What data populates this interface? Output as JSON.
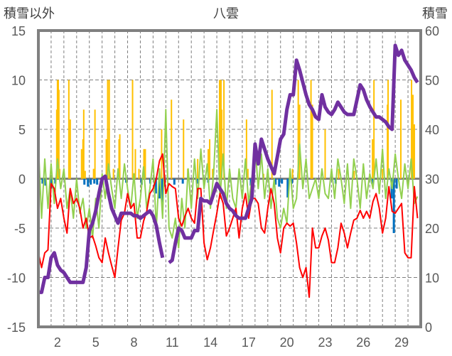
{
  "chart_data": {
    "type": "line",
    "title": "八雲",
    "left_axis_label": "積雪以外",
    "right_axis_label": "積雪",
    "left_ylim": [
      -15,
      15
    ],
    "left_ticks": [
      "15",
      "10",
      "5",
      "0",
      "-5",
      "-10",
      "-15"
    ],
    "right_ylim": [
      0,
      60
    ],
    "right_ticks": [
      "60",
      "50",
      "40",
      "30",
      "20",
      "10",
      "0"
    ],
    "xlim": [
      0.5,
      30.5
    ],
    "x_ticks": [
      "2",
      "5",
      "8",
      "11",
      "14",
      "17",
      "20",
      "23",
      "26",
      "29"
    ],
    "grid": "horizontal dashed every 5, vertical dashed each day",
    "sample_start_day": 0.5,
    "sample_step_days": 0.25,
    "colors": {
      "temperature": "#ff0000",
      "green_series": "#92d050",
      "snow_depth": "#7030a0",
      "sunshine": "#ffc000",
      "precipitation": "#0070c0",
      "axis": "#808080"
    },
    "series": [
      {
        "name": "red",
        "axis": "left",
        "values": [
          -7.5,
          -9,
          -7.5,
          -7.2,
          -0.5,
          -1,
          -3,
          -2,
          -4,
          -5.5,
          -1,
          -2.5,
          -2,
          -3,
          -5,
          -4,
          -6,
          -5.8,
          -6.8,
          -8,
          -8.5,
          -6,
          -7.5,
          -8.8,
          -10,
          -7,
          -4.2,
          -3.5,
          -1.5,
          -3,
          -2.5,
          -6,
          -6,
          -4.3,
          -3.3,
          -1.5,
          -1,
          0,
          1.8,
          2.5,
          -1.5,
          -0.5,
          -0.8,
          -1,
          -4,
          -4.8,
          -3.8,
          -3,
          -4,
          -4.5,
          -1,
          -1,
          -6.5,
          -8.2,
          -7,
          -5.2,
          -3.5,
          -1.5,
          -2.5,
          -5.8,
          -5,
          -4,
          -3,
          -6,
          -3,
          -1.5,
          -4,
          -2,
          -2,
          -2.5,
          -5,
          -5.5,
          -3,
          -1,
          -2.5,
          -6,
          -7.5,
          -5,
          -4.5,
          -4.8,
          -4.5,
          -6.5,
          -9,
          -10,
          -9,
          -12,
          -5,
          -7,
          -7,
          -5.8,
          -5,
          -6.2,
          -8.5,
          -8.5,
          -7,
          -4.5,
          -5.5,
          -7,
          -5.5,
          -4.2,
          -4,
          -3.2,
          -4,
          -3.3,
          -4,
          -2.3,
          -1.5,
          -3,
          -5.5,
          -4,
          -0.8,
          -3.3,
          -3.5,
          -3,
          -2.5,
          -7.5,
          -8,
          -8,
          -0.8,
          -4
        ]
      },
      {
        "name": "green",
        "axis": "left",
        "values": [
          3.5,
          -4,
          2,
          -3,
          1.5,
          -2.5,
          2,
          -1,
          1,
          -3,
          -1,
          -4,
          0,
          -3.5,
          -2,
          -5,
          -3,
          -6,
          -2,
          -5,
          0.5,
          -2,
          1.5,
          -1,
          -3,
          1,
          -2,
          1.5,
          -1,
          -3,
          0.5,
          -4,
          -2,
          1.2,
          -3,
          -1,
          2,
          -5,
          1,
          -4,
          7,
          -5,
          -6,
          -4,
          -7,
          -2,
          -5,
          1,
          -3,
          2,
          -2,
          3,
          -1,
          1.5,
          -3,
          0.5,
          7,
          -2,
          2.5,
          -3,
          1,
          -2,
          -3,
          1,
          -2,
          2,
          -2.5,
          0,
          3.5,
          -1,
          2.5,
          -2,
          1,
          -3,
          0,
          -4,
          -5,
          -3,
          -4.5,
          1,
          -3,
          -2,
          3.5,
          -1,
          2,
          -2,
          -1,
          0,
          -2,
          1,
          -1.5,
          -2,
          1,
          -2,
          2,
          0,
          -2.5,
          1.5,
          -3,
          2,
          0,
          -3,
          1.5,
          -2,
          0.5,
          -1,
          2,
          -1.5,
          3,
          -2,
          1,
          -1,
          2.5,
          0,
          -2,
          1.5,
          -1,
          2,
          -2.5,
          -1.8
        ]
      },
      {
        "name": "積雪",
        "axis": "right",
        "values": [
          7,
          7,
          10,
          10,
          14,
          15,
          12.5,
          11.5,
          11,
          10,
          9,
          9,
          9,
          9,
          9,
          12,
          19.5,
          21,
          23.5,
          27,
          30,
          30.5,
          27,
          24,
          22.5,
          21,
          23,
          23,
          23,
          23,
          22.5,
          22.5,
          22,
          22.5,
          23,
          23.5,
          22.5,
          20.5,
          17,
          14,
          null,
          13,
          13.5,
          17,
          20,
          19.5,
          18,
          18,
          18,
          19.5,
          19.5,
          26,
          25.5,
          25.5,
          25,
          27,
          29,
          28,
          27,
          25,
          24,
          23.5,
          22.5,
          22,
          22,
          22,
          24,
          26,
          37,
          33,
          38,
          36,
          34,
          32.5,
          31,
          34.5,
          38,
          39,
          44,
          47,
          47,
          54,
          52,
          49.5,
          47,
          45,
          44,
          42.5,
          42,
          47,
          44.5,
          43.5,
          43,
          44,
          45.5,
          44.5,
          43.5,
          43,
          43,
          43,
          46,
          49,
          48,
          46,
          44.6,
          43.5,
          42.5,
          42.5,
          42,
          41.5,
          40.5,
          40,
          57,
          55,
          56,
          54,
          53,
          52,
          50.5,
          49.5
        ]
      }
    ],
    "bars": [
      {
        "name": "orange",
        "axis": "left",
        "points": [
          [
            1.94,
            7
          ],
          [
            2.0,
            10
          ],
          [
            2.06,
            10
          ],
          [
            2.11,
            9
          ],
          [
            2.17,
            1
          ],
          [
            2.89,
            10
          ],
          [
            3.0,
            6
          ],
          [
            3.89,
            3
          ],
          [
            4.0,
            4
          ],
          [
            4.06,
            7
          ],
          [
            4.17,
            0.8
          ],
          [
            4.83,
            1
          ],
          [
            4.94,
            7
          ],
          [
            5.83,
            4
          ],
          [
            5.94,
            10
          ],
          [
            6.06,
            10
          ],
          [
            6.39,
            1
          ],
          [
            6.83,
            4
          ],
          [
            6.89,
            4.5
          ],
          [
            7.89,
            10
          ],
          [
            8.11,
            3
          ],
          [
            8.39,
            1
          ],
          [
            8.78,
            3
          ],
          [
            8.89,
            3
          ],
          [
            10.17,
            5
          ],
          [
            10.39,
            0.5
          ],
          [
            10.94,
            8
          ],
          [
            11.89,
            6
          ],
          [
            12.22,
            1
          ],
          [
            13.0,
            2
          ],
          [
            13.83,
            3
          ],
          [
            13.94,
            4
          ],
          [
            14.17,
            1
          ],
          [
            14.72,
            10
          ],
          [
            14.83,
            10
          ],
          [
            14.89,
            7
          ],
          [
            15.06,
            10
          ],
          [
            16.83,
            6
          ],
          [
            16.94,
            1
          ],
          [
            18.17,
            0.5
          ],
          [
            18.83,
            9
          ],
          [
            20.44,
            1
          ],
          [
            20.89,
            10
          ],
          [
            21.0,
            7.5
          ],
          [
            21.89,
            10
          ],
          [
            22.0,
            7.5
          ],
          [
            23.0,
            5
          ],
          [
            24.06,
            1
          ],
          [
            25.28,
            0.8
          ],
          [
            26.72,
            4
          ],
          [
            26.83,
            10
          ],
          [
            27.5,
            1
          ],
          [
            27.89,
            7.5
          ],
          [
            27.94,
            10
          ],
          [
            28.94,
            8
          ],
          [
            29.78,
            10
          ],
          [
            29.89,
            8.5
          ],
          [
            30.0,
            5.5
          ]
        ]
      },
      {
        "name": "blue",
        "axis": "left",
        "points": [
          [
            0.83,
            -0.5
          ],
          [
            1.06,
            -0.7
          ],
          [
            1.5,
            -1
          ],
          [
            1.83,
            -0.5
          ],
          [
            4.11,
            -0.6
          ],
          [
            4.39,
            -0.8
          ],
          [
            4.61,
            -0.6
          ],
          [
            4.89,
            -0.5
          ],
          [
            5.11,
            -0.6
          ],
          [
            7.39,
            -0.4
          ],
          [
            8.61,
            -0.6
          ],
          [
            9.28,
            -0.5
          ],
          [
            9.72,
            -1.5
          ],
          [
            10.0,
            -2
          ],
          [
            10.22,
            -2.4
          ],
          [
            10.39,
            -0.8
          ],
          [
            11.17,
            -0.6
          ],
          [
            11.83,
            -0.5
          ],
          [
            12.94,
            -0.5
          ],
          [
            13.83,
            -0.4
          ],
          [
            17.17,
            -0.7
          ],
          [
            19.11,
            -0.6
          ],
          [
            19.39,
            -0.8
          ],
          [
            19.61,
            -0.5
          ],
          [
            20.06,
            -1.9
          ],
          [
            20.39,
            -0.5
          ],
          [
            23.83,
            -0.5
          ],
          [
            26.67,
            -0.5
          ],
          [
            28.22,
            -2
          ],
          [
            28.39,
            -5.5
          ],
          [
            28.61,
            -1
          ]
        ]
      }
    ]
  }
}
